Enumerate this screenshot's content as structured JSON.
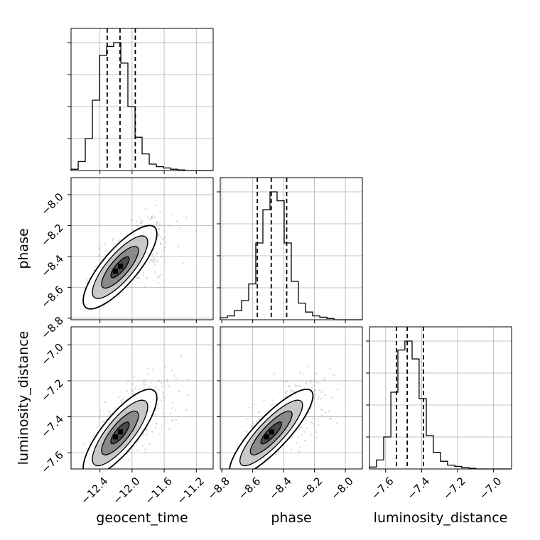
{
  "chart_data": {
    "type": "corner",
    "parameters": [
      "geocent_time",
      "phase",
      "luminosity_distance"
    ],
    "axis_labels": {
      "bottom": [
        "geocent_time",
        "phase",
        "luminosity_distance"
      ],
      "left": [
        "phase",
        "luminosity_distance"
      ]
    },
    "ticks": {
      "geocent_time": {
        "values": [
          -12.4,
          -12.0,
          -11.6,
          -11.2
        ],
        "labels": [
          "−12.4",
          "−12.0",
          "−11.6",
          "−11.2"
        ]
      },
      "phase": {
        "values": [
          -8.8,
          -8.6,
          -8.4,
          -8.2,
          -8.0
        ],
        "labels": [
          "−8.8",
          "−8.6",
          "−8.4",
          "−8.2",
          "−8.0"
        ]
      },
      "luminosity_distance": {
        "values": [
          -7.6,
          -7.4,
          -7.2,
          -7.0
        ],
        "labels": [
          "−7.6",
          "−7.4",
          "−7.2",
          "−7.0"
        ]
      }
    },
    "ranges": {
      "geocent_time": [
        -12.76,
        -10.99
      ],
      "phase": [
        -8.81,
        -7.89
      ],
      "luminosity_distance": [
        -7.69,
        -6.9
      ]
    },
    "grid": true,
    "histograms": [
      {
        "param": "geocent_time",
        "bin_edges": [
          -12.76,
          -12.671,
          -12.583,
          -12.494,
          -12.406,
          -12.317,
          -12.229,
          -12.14,
          -12.052,
          -11.963,
          -11.875,
          -11.786,
          -11.698,
          -11.609,
          -11.521,
          -11.432,
          -11.344,
          -11.255,
          -11.167,
          -11.078,
          -10.99
        ],
        "counts": [
          0.01,
          0.07,
          0.25,
          0.55,
          0.9,
          0.97,
          1.0,
          0.84,
          0.5,
          0.26,
          0.13,
          0.05,
          0.03,
          0.02,
          0.01,
          0.005,
          0,
          0,
          0,
          0
        ],
        "quantiles": [
          -12.31,
          -12.15,
          -11.96
        ]
      },
      {
        "param": "phase",
        "bin_edges": [
          -8.81,
          -8.764,
          -8.718,
          -8.672,
          -8.626,
          -8.58,
          -8.534,
          -8.488,
          -8.442,
          -8.396,
          -8.35,
          -8.304,
          -8.258,
          -8.212,
          -8.166,
          -8.12,
          -8.074,
          -8.028,
          -7.982,
          -7.936,
          -7.89
        ],
        "counts": [
          0.015,
          0.03,
          0.07,
          0.15,
          0.28,
          0.6,
          0.86,
          1.0,
          0.93,
          0.6,
          0.3,
          0.13,
          0.06,
          0.03,
          0.02,
          0.01,
          0,
          0,
          0,
          0
        ],
        "quantiles": [
          -8.57,
          -8.48,
          -8.38
        ]
      },
      {
        "param": "luminosity_distance",
        "bin_edges": [
          -7.69,
          -7.651,
          -7.611,
          -7.571,
          -7.532,
          -7.493,
          -7.453,
          -7.414,
          -7.374,
          -7.335,
          -7.295,
          -7.256,
          -7.216,
          -7.177,
          -7.137,
          -7.098,
          -7.058,
          -7.019,
          -6.979,
          -6.94,
          -6.9
        ],
        "counts": [
          0.015,
          0.07,
          0.25,
          0.6,
          0.93,
          1.0,
          0.86,
          0.55,
          0.26,
          0.13,
          0.06,
          0.03,
          0.02,
          0.01,
          0.005,
          0,
          0,
          0,
          0,
          0
        ],
        "quantiles": [
          -7.54,
          -7.48,
          -7.39
        ]
      }
    ],
    "joint": [
      {
        "x_param": "geocent_time",
        "y_param": "phase",
        "mean": [
          -12.15,
          -8.47
        ],
        "sd": [
          0.17,
          0.1
        ],
        "rho": 0.8,
        "scatter_extent": {
          "x": [
            -12.6,
            -11.15
          ],
          "y": [
            -8.72,
            -8.02
          ]
        }
      },
      {
        "x_param": "geocent_time",
        "y_param": "luminosity_distance",
        "mean": [
          -12.15,
          -7.49
        ],
        "sd": [
          0.17,
          0.09
        ],
        "rho": 0.8,
        "scatter_extent": {
          "x": [
            -12.6,
            -11.15
          ],
          "y": [
            -7.65,
            -7.05
          ]
        }
      },
      {
        "x_param": "phase",
        "y_param": "luminosity_distance",
        "mean": [
          -8.48,
          -7.49
        ],
        "sd": [
          0.1,
          0.09
        ],
        "rho": 0.85,
        "scatter_extent": {
          "x": [
            -8.7,
            -8.02
          ],
          "y": [
            -7.65,
            -7.05
          ]
        }
      }
    ],
    "contour_levels_sigma": [
      0.5,
      1.0,
      1.5,
      2.0
    ],
    "colors": {
      "line": "#000000",
      "grid": "#b0b0b0",
      "scatter": "#808080"
    }
  }
}
